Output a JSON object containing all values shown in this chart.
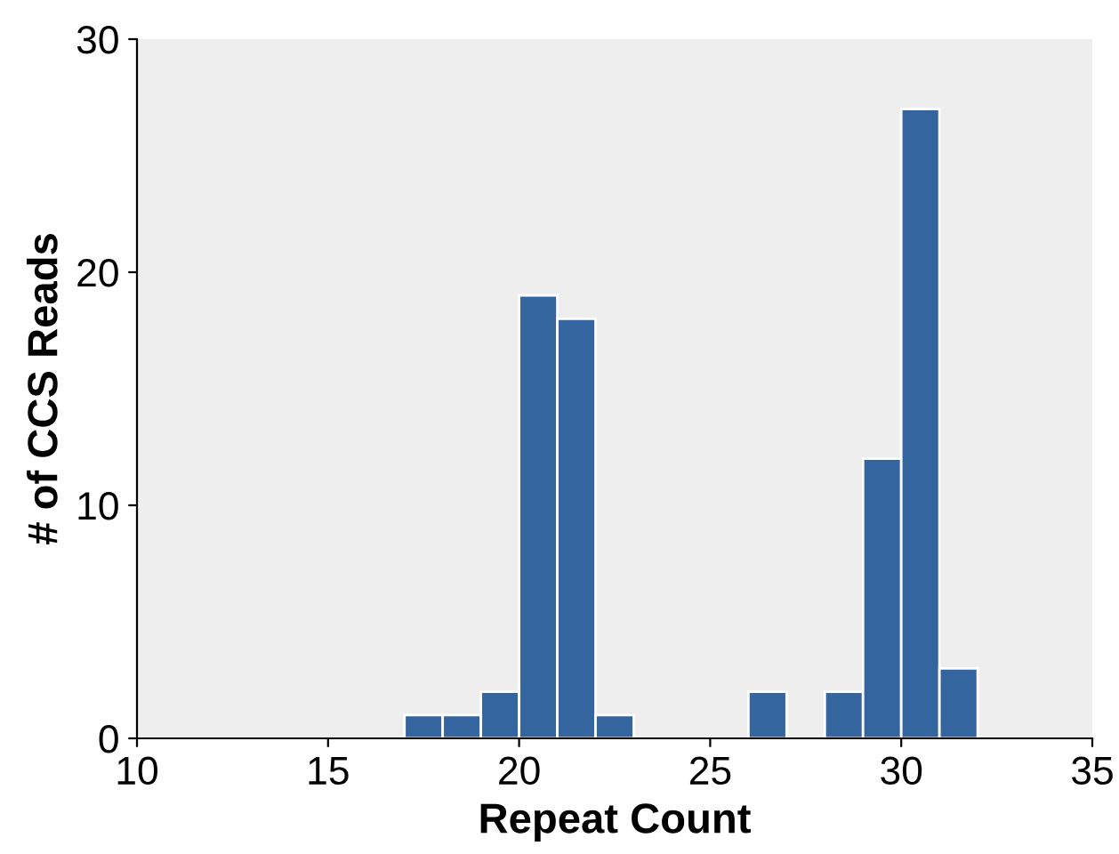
{
  "chart_data": {
    "type": "histogram",
    "xlabel": "Repeat Count",
    "ylabel": "# of CCS Reads",
    "bins": [
      17,
      18,
      19,
      20,
      21,
      22,
      23,
      24,
      25,
      26,
      27,
      28,
      29,
      30,
      31,
      32
    ],
    "values": [
      1,
      1,
      2,
      19,
      18,
      1,
      0,
      0,
      0,
      2,
      0,
      2,
      12,
      27,
      3
    ],
    "color": "#34659f",
    "xlim": [
      10,
      35
    ],
    "ylim": [
      0,
      30
    ],
    "xticks": [
      10,
      15,
      20,
      25,
      30,
      35
    ],
    "yticks": [
      0,
      10,
      20,
      30
    ],
    "grid": false
  }
}
